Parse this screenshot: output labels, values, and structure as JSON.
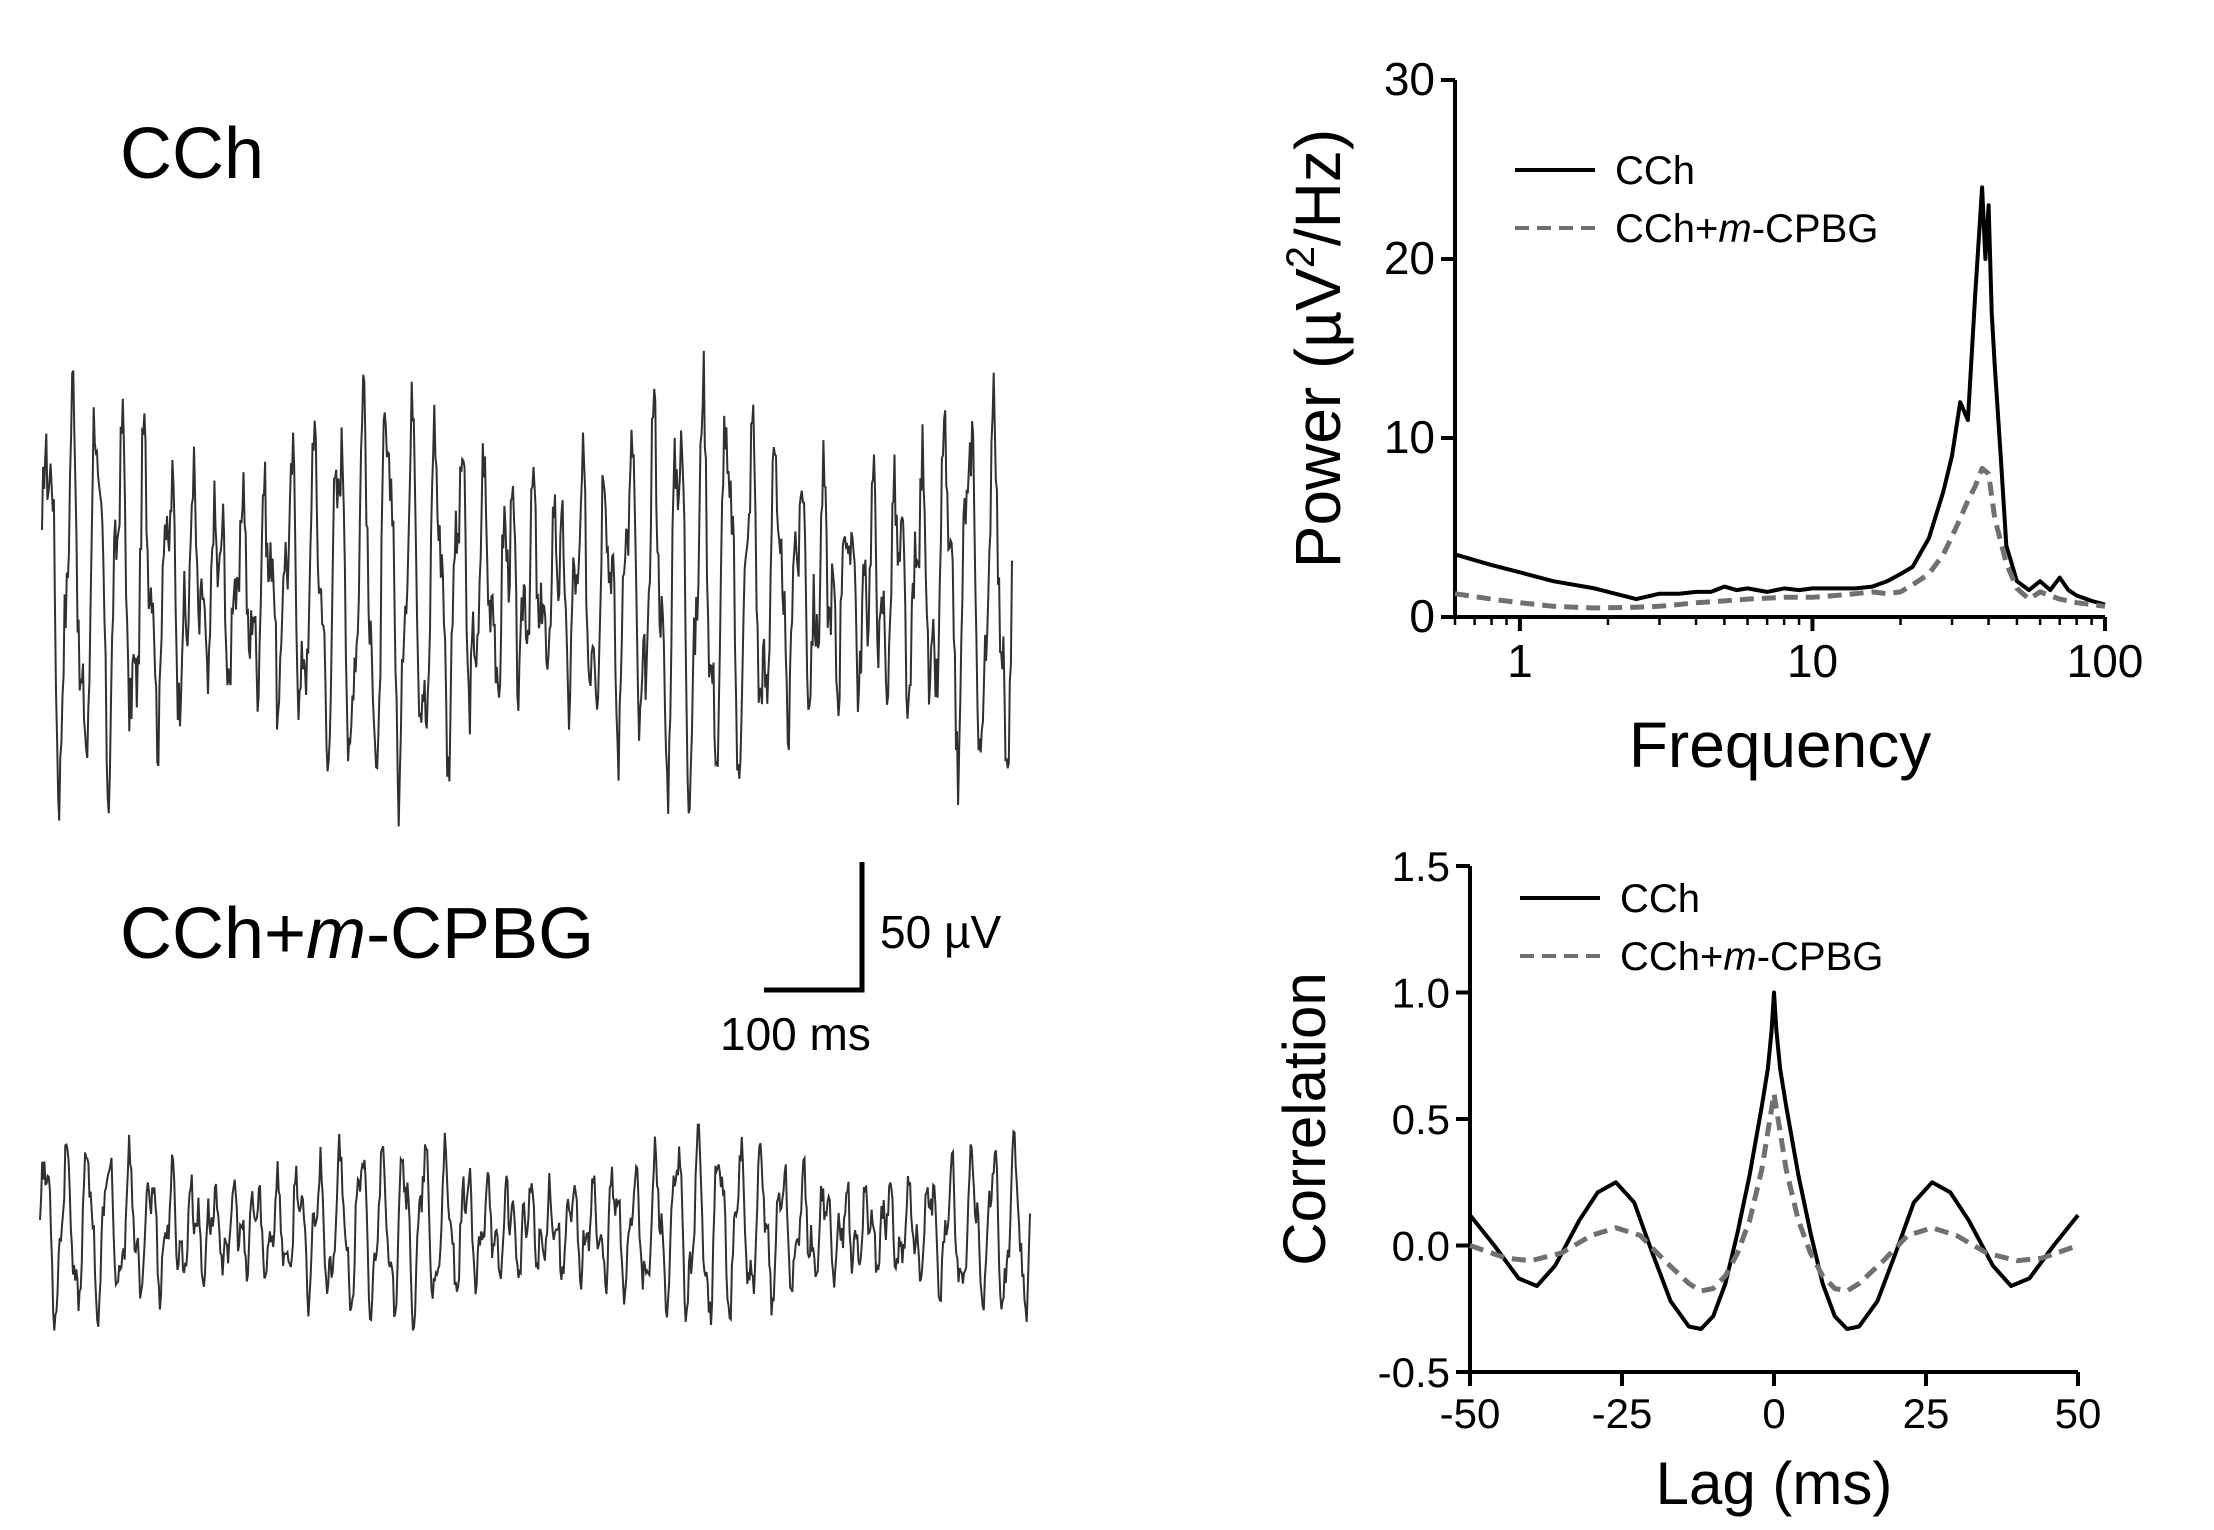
{
  "colors": {
    "cch": "#000000",
    "cch_mcpbg": "#707070",
    "trace": "#303030",
    "axis": "#000000"
  },
  "traces": {
    "top_label": "CCh",
    "bottom_label_prefix": "CCh+",
    "bottom_label_italic": "m",
    "bottom_label_suffix": "-CPBG",
    "scalebar_voltage": "50 µV",
    "scalebar_time": "100 ms"
  },
  "chart_data": [
    {
      "type": "line",
      "title": "",
      "xlabel": "Frequency",
      "ylabel_prefix": "Power (µV",
      "ylabel_sup": "2",
      "ylabel_suffix": "/Hz)",
      "xscale": "log",
      "xlim": [
        0.6,
        100
      ],
      "ylim": [
        0,
        30
      ],
      "xticks": [
        1,
        10,
        100
      ],
      "xtick_labels": [
        "1",
        "10",
        "100"
      ],
      "yticks": [
        0,
        10,
        20,
        30
      ],
      "ytick_labels": [
        "0",
        "10",
        "20",
        "30"
      ],
      "grid": false,
      "legend_position": "top-left",
      "legend": [
        "CCh",
        "CCh+m-CPBG"
      ],
      "legend_prefix": "CCh+",
      "legend_italic": "m",
      "legend_suffix": "-CPBG",
      "series": [
        {
          "name": "CCh",
          "style": "solid",
          "x": [
            0.6,
            0.8,
            1.0,
            1.3,
            1.8,
            2.5,
            3.0,
            3.5,
            4.0,
            4.5,
            5.0,
            5.5,
            6.0,
            7.0,
            8.0,
            9.0,
            10.0,
            12.0,
            14.0,
            16.0,
            18.0,
            20.0,
            22.0,
            25.0,
            28.0,
            30.0,
            32.0,
            34.0,
            36.0,
            38.0,
            39.0,
            40.0,
            41.0,
            42.0,
            44.0,
            46.0,
            50.0,
            55.0,
            60.0,
            65.0,
            70.0,
            75.0,
            80.0,
            90.0,
            100.0
          ],
          "y": [
            3.5,
            2.9,
            2.5,
            2.0,
            1.6,
            1.0,
            1.3,
            1.3,
            1.4,
            1.4,
            1.7,
            1.5,
            1.6,
            1.4,
            1.6,
            1.5,
            1.6,
            1.6,
            1.6,
            1.7,
            2.0,
            2.4,
            2.8,
            4.4,
            7.0,
            9.0,
            12.0,
            11.0,
            18.0,
            24.0,
            20.0,
            23.0,
            17.0,
            14.0,
            9.0,
            4.0,
            2.0,
            1.5,
            2.0,
            1.5,
            2.2,
            1.5,
            1.2,
            0.9,
            0.7
          ]
        },
        {
          "name": "CCh+m-CPBG",
          "style": "dashed",
          "x": [
            0.6,
            0.8,
            1.0,
            1.3,
            1.8,
            2.5,
            3.0,
            3.5,
            4.0,
            5.0,
            6.0,
            8.0,
            10.0,
            12.0,
            14.0,
            16.0,
            18.0,
            20.0,
            22.0,
            25.0,
            28.0,
            30.0,
            32.0,
            34.0,
            36.0,
            38.0,
            40.0,
            42.0,
            46.0,
            50.0,
            55.0,
            60.0,
            70.0,
            80.0,
            90.0,
            100.0
          ],
          "y": [
            1.3,
            1.0,
            0.8,
            0.6,
            0.5,
            0.55,
            0.6,
            0.7,
            0.8,
            0.9,
            1.0,
            1.1,
            1.1,
            1.2,
            1.3,
            1.4,
            1.3,
            1.4,
            1.8,
            2.4,
            3.5,
            4.5,
            5.5,
            6.5,
            7.3,
            8.3,
            8.0,
            5.5,
            3.0,
            1.6,
            1.0,
            1.4,
            1.0,
            0.8,
            0.7,
            0.6
          ]
        }
      ]
    },
    {
      "type": "line",
      "title": "",
      "xlabel": "Lag (ms)",
      "ylabel": "Correlation",
      "xlim": [
        -50,
        50
      ],
      "ylim": [
        -0.5,
        1.5
      ],
      "xticks": [
        -50,
        -25,
        0,
        25,
        50
      ],
      "xtick_labels": [
        "-50",
        "-25",
        "0",
        "25",
        "50"
      ],
      "yticks": [
        -0.5,
        0.0,
        0.5,
        1.0,
        1.5
      ],
      "ytick_labels": [
        "-0.5",
        "0.0",
        "0.5",
        "1.0",
        "1.5"
      ],
      "grid": false,
      "legend_position": "top-left",
      "legend": [
        "CCh",
        "CCh+m-CPBG"
      ],
      "legend_prefix": "CCh+",
      "legend_italic": "m",
      "legend_suffix": "-CPBG",
      "series": [
        {
          "name": "CCh",
          "style": "solid",
          "x": [
            -50,
            -46,
            -42,
            -39,
            -36,
            -32,
            -29,
            -26,
            -23,
            -20,
            -17,
            -14,
            -12,
            -10,
            -8,
            -6,
            -4,
            -2,
            -1,
            -0.4,
            0,
            0.4,
            1,
            2,
            4,
            6,
            8,
            10,
            12,
            14,
            17,
            20,
            23,
            26,
            29,
            32,
            36,
            39,
            42,
            46,
            50
          ],
          "y": [
            0.12,
            0.0,
            -0.13,
            -0.16,
            -0.08,
            0.1,
            0.21,
            0.25,
            0.17,
            -0.03,
            -0.22,
            -0.32,
            -0.33,
            -0.28,
            -0.15,
            0.05,
            0.28,
            0.55,
            0.7,
            0.85,
            1.0,
            0.85,
            0.7,
            0.55,
            0.28,
            0.05,
            -0.15,
            -0.28,
            -0.33,
            -0.32,
            -0.22,
            -0.03,
            0.17,
            0.25,
            0.21,
            0.1,
            -0.08,
            -0.16,
            -0.13,
            0.0,
            0.12
          ]
        },
        {
          "name": "CCh+m-CPBG",
          "style": "dashed",
          "x": [
            -50,
            -44,
            -40,
            -35,
            -30,
            -26,
            -22,
            -18,
            -14,
            -12,
            -10,
            -8,
            -6,
            -4,
            -2,
            -1,
            0,
            1,
            2,
            4,
            6,
            8,
            10,
            12,
            14,
            18,
            22,
            26,
            30,
            35,
            40,
            44,
            50
          ],
          "y": [
            0.0,
            -0.05,
            -0.06,
            -0.03,
            0.04,
            0.07,
            0.04,
            -0.06,
            -0.15,
            -0.18,
            -0.17,
            -0.12,
            -0.03,
            0.1,
            0.3,
            0.45,
            0.6,
            0.45,
            0.3,
            0.1,
            -0.03,
            -0.12,
            -0.17,
            -0.18,
            -0.15,
            -0.06,
            0.04,
            0.07,
            0.04,
            -0.03,
            -0.06,
            -0.05,
            0.0
          ]
        }
      ]
    }
  ]
}
